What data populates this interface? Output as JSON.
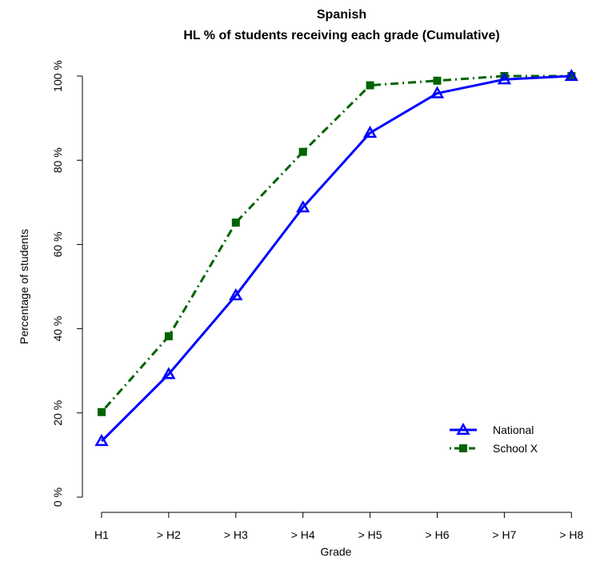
{
  "chart_data": {
    "type": "line",
    "title": "Spanish",
    "subtitle": "HL % of students receiving each grade (Cumulative)",
    "xlabel": "Grade",
    "ylabel": "Percentage of students",
    "categories": [
      "H1",
      "> H2",
      "> H3",
      "> H4",
      "> H5",
      "> H6",
      "> H7",
      "> H8"
    ],
    "y_ticks": [
      "0 %",
      "20 %",
      "40 %",
      "60 %",
      "80 %",
      "100 %"
    ],
    "ylim": [
      0,
      100
    ],
    "grid": false,
    "legend_position": "bottom-right",
    "series": [
      {
        "name": "National",
        "color": "#0000ff",
        "line_style": "solid",
        "marker": "triangle",
        "values": [
          13.3,
          29.2,
          47.9,
          68.8,
          86.5,
          95.9,
          99.2,
          100.0
        ]
      },
      {
        "name": "School X",
        "color": "#006400",
        "line_style": "dotdash",
        "marker": "square",
        "values": [
          20.2,
          38.2,
          65.2,
          82.0,
          97.8,
          98.9,
          100.0,
          100.0
        ]
      }
    ]
  }
}
